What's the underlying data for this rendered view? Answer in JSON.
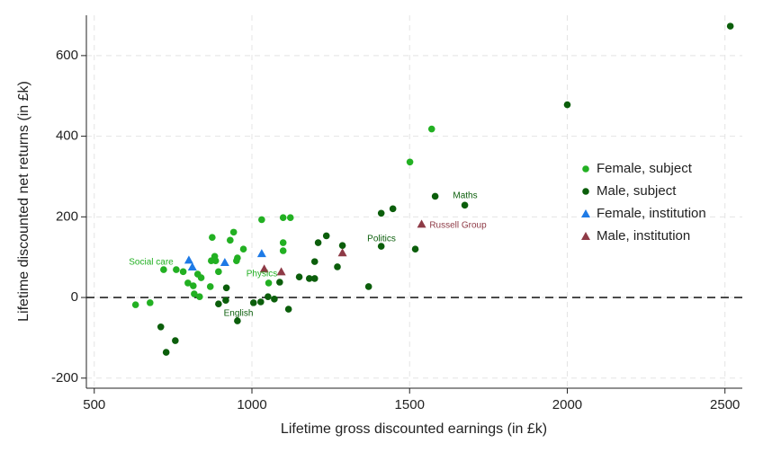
{
  "chart_data": {
    "type": "scatter",
    "x_label": "Lifetime gross discounted earnings (in £k)",
    "y_label": "Lifetime discounted net returns (in £k)",
    "xlim": [
      475,
      2555
    ],
    "ylim": [
      -225,
      700
    ],
    "xticks": [
      500,
      1000,
      1500,
      2000,
      2500
    ],
    "yticks": [
      -200,
      0,
      200,
      400,
      600
    ],
    "grid": true,
    "reference_line": 0,
    "legend_position": "right",
    "series": [
      {
        "name": "Female, subject",
        "color": "#22b022",
        "marker": "circle",
        "x": [
          631,
          677,
          720,
          760,
          782,
          797,
          814,
          817,
          828,
          834,
          839,
          868,
          871,
          874,
          882,
          885,
          894,
          931,
          942,
          951,
          954,
          973,
          1031,
          1053,
          1099,
          1099,
          1099,
          1122,
          1501,
          1570
        ],
        "values": [
          -18,
          -13,
          69,
          69,
          64,
          36,
          29,
          9,
          58,
          2,
          49,
          27,
          91,
          149,
          102,
          91,
          64,
          142,
          162,
          91,
          98,
          120,
          193,
          36,
          198,
          136,
          116,
          198,
          336,
          418
        ]
      },
      {
        "name": "Male, subject",
        "color": "#0b5e0b",
        "marker": "circle",
        "x": [
          711,
          728,
          757,
          894,
          917,
          919,
          954,
          1005,
          1028,
          1051,
          1071,
          1088,
          1116,
          1150,
          1182,
          1199,
          1199,
          1210,
          1236,
          1271,
          1287,
          1370,
          1410,
          1410,
          1447,
          1518,
          1581,
          1675,
          2000,
          2517
        ],
        "values": [
          -73,
          -136,
          -107,
          -16,
          -7,
          24,
          -58,
          -13,
          -11,
          2,
          -4,
          38,
          -29,
          51,
          47,
          47,
          89,
          136,
          153,
          76,
          129,
          27,
          209,
          127,
          220,
          120,
          251,
          229,
          478,
          673
        ]
      },
      {
        "name": "Female, institution",
        "color": "#1e7ae6",
        "marker": "triangle",
        "x": [
          800,
          811,
          914,
          1031
        ],
        "values": [
          93,
          76,
          87,
          109
        ]
      },
      {
        "name": "Male, institution",
        "color": "#8e3a46",
        "marker": "triangle",
        "x": [
          1039,
          1093,
          1287,
          1538
        ],
        "values": [
          71,
          64,
          111,
          182
        ]
      }
    ],
    "annotations": [
      {
        "text": "Social care",
        "color": "#22b022"
      },
      {
        "text": "Physics",
        "color": "#22b022"
      },
      {
        "text": "English",
        "color": "#0b5e0b"
      },
      {
        "text": "Politics",
        "color": "#0b5e0b"
      },
      {
        "text": "Maths",
        "color": "#0b5e0b"
      },
      {
        "text": "Russell Group",
        "color": "#8e3a46"
      }
    ]
  }
}
